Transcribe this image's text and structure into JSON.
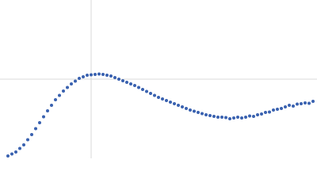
{
  "chart_data": {
    "type": "scatter",
    "color": "#3a62b0",
    "grid": true,
    "xlim": [
      0,
      400
    ],
    "ylim": [
      0,
      200
    ],
    "xticks": [
      115
    ],
    "yticks": [
      100
    ],
    "x": [
      10,
      15,
      20,
      25,
      30,
      35,
      40,
      45,
      50,
      55,
      60,
      65,
      70,
      75,
      80,
      85,
      90,
      95,
      100,
      105,
      110,
      115,
      120,
      125,
      130,
      135,
      140,
      145,
      150,
      155,
      160,
      165,
      170,
      175,
      180,
      185,
      190,
      195,
      200,
      205,
      210,
      215,
      220,
      225,
      230,
      235,
      240,
      245,
      250,
      255,
      260,
      265,
      270,
      275,
      280,
      285,
      290,
      295,
      300,
      305,
      310,
      315,
      320,
      325,
      330,
      335,
      340,
      345,
      350,
      355,
      360,
      365,
      370,
      375,
      380,
      385,
      390,
      395
    ],
    "values": [
      3,
      5.5,
      8,
      12.5,
      17,
      23.5,
      30,
      37.5,
      45,
      52.5,
      60,
      67,
      74,
      79.5,
      85,
      89.5,
      94,
      97.5,
      101,
      103,
      105,
      105.5,
      106,
      106.5,
      106,
      105,
      104,
      102,
      100,
      98,
      96,
      94,
      92,
      89.5,
      87,
      84.5,
      82,
      79.5,
      77,
      75,
      73,
      71,
      69,
      67,
      65,
      63,
      61,
      59.5,
      58,
      56.5,
      55,
      54,
      53,
      52,
      52,
      51.5,
      50,
      51,
      52,
      51,
      52,
      53.5,
      53,
      55,
      56,
      58,
      58.5,
      61,
      62,
      63,
      65,
      67,
      66,
      68.5,
      69,
      70,
      69.5,
      72
    ]
  }
}
